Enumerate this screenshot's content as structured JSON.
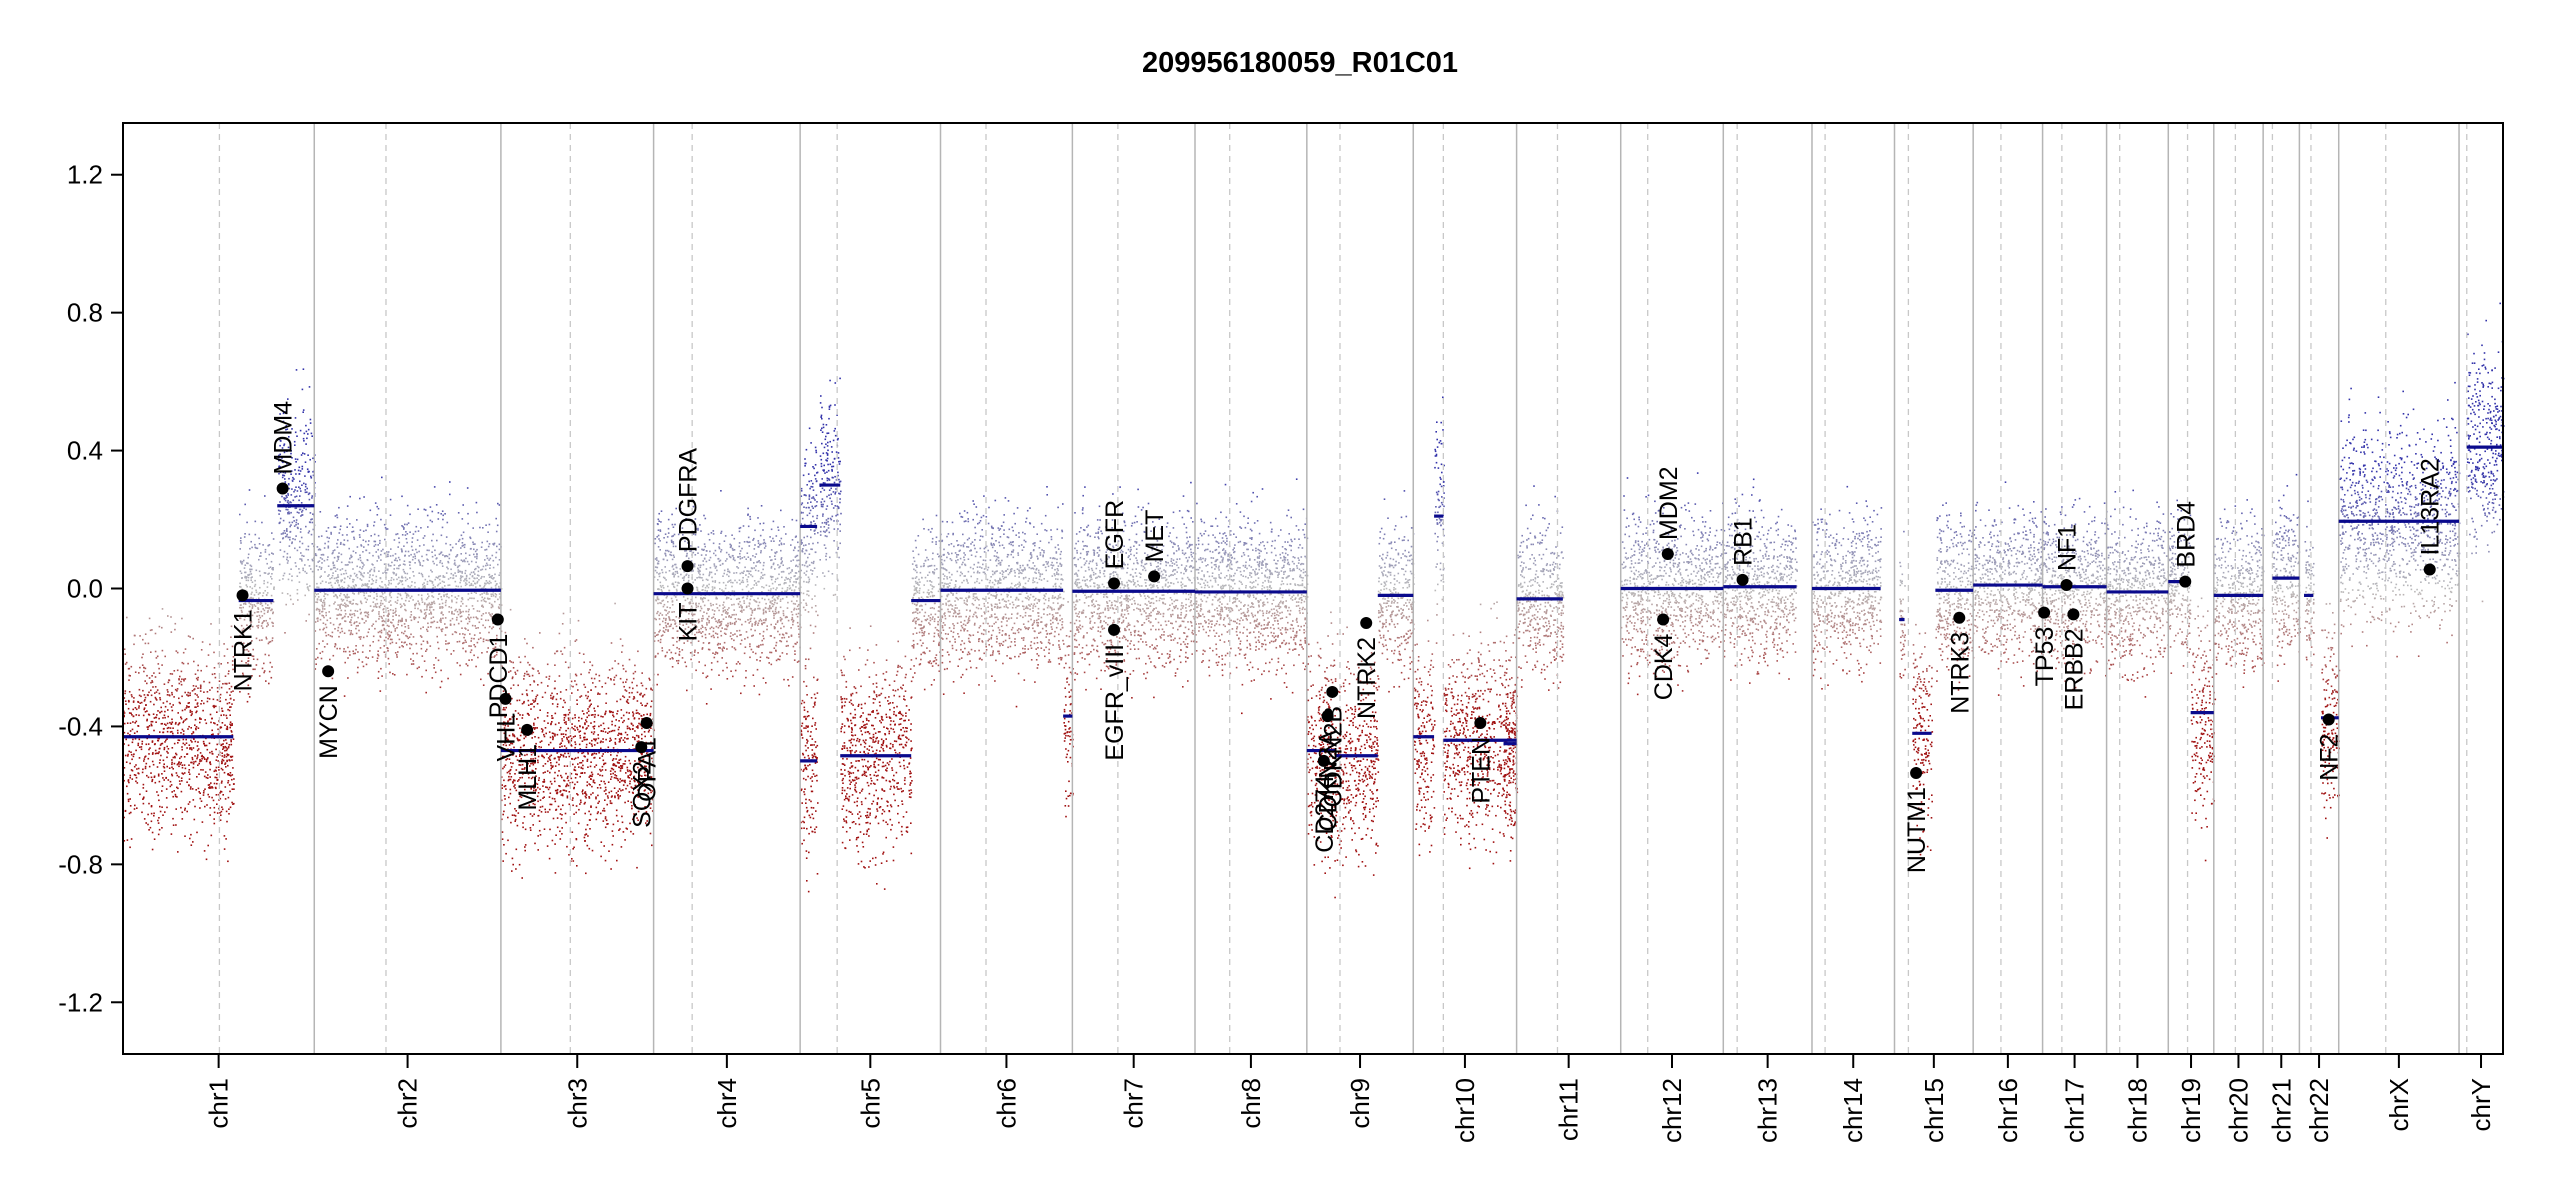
{
  "chart_data": {
    "type": "scatter",
    "title": "209956180059_R01C01",
    "xlabel": "",
    "ylabel": "",
    "ylim": [
      -1.35,
      1.35
    ],
    "yticks": [
      -1.2,
      -0.8,
      -0.4,
      0.0,
      0.4,
      0.8,
      1.2
    ],
    "ytick_labels": [
      "-1.2",
      "-0.8",
      "-0.4",
      "0.0",
      "0.4",
      "0.8",
      "1.2"
    ],
    "grid": false,
    "colors": {
      "gain": "#3333aa",
      "neutral": "#bbbbbb",
      "loss": "#a01010",
      "segment": "#0a0a8c",
      "gene": "#000000",
      "boundary": "#bbbbbb"
    },
    "chromosomes": [
      {
        "name": "chr1",
        "start": 0,
        "end": 248,
        "centromere": 125
      },
      {
        "name": "chr2",
        "start": 248,
        "end": 490,
        "centromere": 341
      },
      {
        "name": "chr3",
        "start": 490,
        "end": 688,
        "centromere": 580
      },
      {
        "name": "chr4",
        "start": 688,
        "end": 878,
        "centromere": 738
      },
      {
        "name": "chr5",
        "start": 878,
        "end": 1060,
        "centromere": 926
      },
      {
        "name": "chr6",
        "start": 1060,
        "end": 1231,
        "centromere": 1119
      },
      {
        "name": "chr7",
        "start": 1231,
        "end": 1390,
        "centromere": 1290
      },
      {
        "name": "chr8",
        "start": 1390,
        "end": 1535,
        "centromere": 1435
      },
      {
        "name": "chr9",
        "start": 1535,
        "end": 1673,
        "centromere": 1578
      },
      {
        "name": "chr10",
        "start": 1673,
        "end": 1807,
        "centromere": 1712
      },
      {
        "name": "chr11",
        "start": 1807,
        "end": 1942,
        "centromere": 1860
      },
      {
        "name": "chr12",
        "start": 1942,
        "end": 2075,
        "centromere": 1977
      },
      {
        "name": "chr13",
        "start": 2075,
        "end": 2190,
        "centromere": 2093
      },
      {
        "name": "chr14",
        "start": 2190,
        "end": 2297,
        "centromere": 2207
      },
      {
        "name": "chr15",
        "start": 2297,
        "end": 2399,
        "centromere": 2315
      },
      {
        "name": "chr16",
        "start": 2399,
        "end": 2489,
        "centromere": 2435
      },
      {
        "name": "chr17",
        "start": 2489,
        "end": 2572,
        "centromere": 2514
      },
      {
        "name": "chr18",
        "start": 2572,
        "end": 2652,
        "centromere": 2589
      },
      {
        "name": "chr19",
        "start": 2652,
        "end": 2711,
        "centromere": 2677
      },
      {
        "name": "chr20",
        "start": 2711,
        "end": 2775,
        "centromere": 2739
      },
      {
        "name": "chr21",
        "start": 2775,
        "end": 2822,
        "centromere": 2787
      },
      {
        "name": "chr22",
        "start": 2822,
        "end": 2873,
        "centromere": 2837
      },
      {
        "name": "chrX",
        "start": 2873,
        "end": 3029,
        "centromere": 2934
      },
      {
        "name": "chrY",
        "start": 3029,
        "end": 3086,
        "centromere": 3039
      }
    ],
    "segments": [
      {
        "start": 0,
        "end": 143,
        "value": -0.43
      },
      {
        "start": 150,
        "end": 195,
        "value": -0.035
      },
      {
        "start": 200,
        "end": 248,
        "value": 0.24
      },
      {
        "start": 248,
        "end": 490,
        "value": -0.005
      },
      {
        "start": 490,
        "end": 688,
        "value": -0.47
      },
      {
        "start": 688,
        "end": 878,
        "value": -0.015
      },
      {
        "start": 878,
        "end": 900,
        "value": 0.18
      },
      {
        "start": 878,
        "end": 900,
        "value": -0.5
      },
      {
        "start": 903,
        "end": 930,
        "value": 0.3
      },
      {
        "start": 930,
        "end": 1022,
        "value": -0.485
      },
      {
        "start": 1022,
        "end": 1060,
        "value": -0.035
      },
      {
        "start": 1060,
        "end": 1219,
        "value": -0.005
      },
      {
        "start": 1219,
        "end": 1231,
        "value": -0.37
      },
      {
        "start": 1231,
        "end": 1390,
        "value": -0.008
      },
      {
        "start": 1390,
        "end": 1535,
        "value": -0.01
      },
      {
        "start": 1535,
        "end": 1573,
        "value": -0.47
      },
      {
        "start": 1573,
        "end": 1627,
        "value": -0.485
      },
      {
        "start": 1627,
        "end": 1673,
        "value": -0.02
      },
      {
        "start": 1673,
        "end": 1700,
        "value": -0.43
      },
      {
        "start": 1700,
        "end": 1712,
        "value": 0.21
      },
      {
        "start": 1712,
        "end": 1807,
        "value": -0.44
      },
      {
        "start": 1790,
        "end": 1807,
        "value": -0.45
      },
      {
        "start": 1807,
        "end": 1867,
        "value": -0.03
      },
      {
        "start": 1942,
        "end": 2075,
        "value": 0.0
      },
      {
        "start": 2075,
        "end": 2170,
        "value": 0.005
      },
      {
        "start": 2190,
        "end": 2279,
        "value": 0.0
      },
      {
        "start": 2303,
        "end": 2310,
        "value": -0.09
      },
      {
        "start": 2320,
        "end": 2345,
        "value": -0.42
      },
      {
        "start": 2350,
        "end": 2399,
        "value": -0.005
      },
      {
        "start": 2399,
        "end": 2489,
        "value": 0.01
      },
      {
        "start": 2489,
        "end": 2572,
        "value": 0.005
      },
      {
        "start": 2572,
        "end": 2652,
        "value": -0.01
      },
      {
        "start": 2652,
        "end": 2680,
        "value": 0.02
      },
      {
        "start": 2681,
        "end": 2711,
        "value": -0.36
      },
      {
        "start": 2711,
        "end": 2760,
        "value": -0.02
      },
      {
        "start": 2760,
        "end": 2775,
        "value": -0.02
      },
      {
        "start": 2787,
        "end": 2822,
        "value": 0.03
      },
      {
        "start": 2828,
        "end": 2840,
        "value": -0.02
      },
      {
        "start": 2850,
        "end": 2873,
        "value": -0.375
      },
      {
        "start": 2873,
        "end": 3029,
        "value": 0.195
      },
      {
        "start": 3039,
        "end": 3086,
        "value": 0.41
      }
    ],
    "genes": [
      {
        "name": "NTRK1",
        "pos": 155,
        "value": -0.02,
        "label_side": "below"
      },
      {
        "name": "MDM4",
        "pos": 207,
        "value": 0.29,
        "label_side": "above"
      },
      {
        "name": "MYCN",
        "pos": 266,
        "value": -0.24,
        "label_side": "below"
      },
      {
        "name": "PDCD1",
        "pos": 486,
        "value": -0.09,
        "label_side": "below"
      },
      {
        "name": "VHL",
        "pos": 496,
        "value": -0.32,
        "label_side": "below"
      },
      {
        "name": "MLH1",
        "pos": 524,
        "value": -0.41,
        "label_side": "below"
      },
      {
        "name": "SOX2",
        "pos": 672,
        "value": -0.46,
        "label_side": "below"
      },
      {
        "name": "OPA1",
        "pos": 679,
        "value": -0.39,
        "label_side": "below"
      },
      {
        "name": "KIT",
        "pos": 732,
        "value": 0.0,
        "label_side": "below"
      },
      {
        "name": "PDGFRA",
        "pos": 732,
        "value": 0.065,
        "label_side": "above"
      },
      {
        "name": "EGFR",
        "pos": 1285,
        "value": 0.015,
        "label_side": "above"
      },
      {
        "name": "EGFR_vIII",
        "pos": 1285,
        "value": -0.12,
        "label_side": "below"
      },
      {
        "name": "MET",
        "pos": 1337,
        "value": 0.035,
        "label_side": "above"
      },
      {
        "name": "CD274",
        "pos": 1557,
        "value": -0.5,
        "label_side": "below"
      },
      {
        "name": "CDKN2A",
        "pos": 1562,
        "value": -0.37,
        "label_side": "below"
      },
      {
        "name": "CDKN2B",
        "pos": 1568,
        "value": -0.3,
        "label_side": "below"
      },
      {
        "name": "NTRK2",
        "pos": 1612,
        "value": -0.1,
        "label_side": "below"
      },
      {
        "name": "PTEN",
        "pos": 1760,
        "value": -0.39,
        "label_side": "below"
      },
      {
        "name": "MDM2",
        "pos": 2003,
        "value": 0.1,
        "label_side": "above"
      },
      {
        "name": "CDK4",
        "pos": 1997,
        "value": -0.09,
        "label_side": "below"
      },
      {
        "name": "RB1",
        "pos": 2100,
        "value": 0.025,
        "label_side": "above"
      },
      {
        "name": "NUTM1",
        "pos": 2325,
        "value": -0.535,
        "label_side": "below"
      },
      {
        "name": "NTRK3",
        "pos": 2381,
        "value": -0.085,
        "label_side": "below"
      },
      {
        "name": "TP53",
        "pos": 2491,
        "value": -0.07,
        "label_side": "below"
      },
      {
        "name": "NF1",
        "pos": 2520,
        "value": 0.01,
        "label_side": "above"
      },
      {
        "name": "ERBB2",
        "pos": 2529,
        "value": -0.075,
        "label_side": "below"
      },
      {
        "name": "BRD4",
        "pos": 2674,
        "value": 0.02,
        "label_side": "above"
      },
      {
        "name": "NF2",
        "pos": 2860,
        "value": -0.38,
        "label_side": "below"
      },
      {
        "name": "IL13RA2",
        "pos": 2991,
        "value": 0.055,
        "label_side": "above"
      }
    ]
  }
}
